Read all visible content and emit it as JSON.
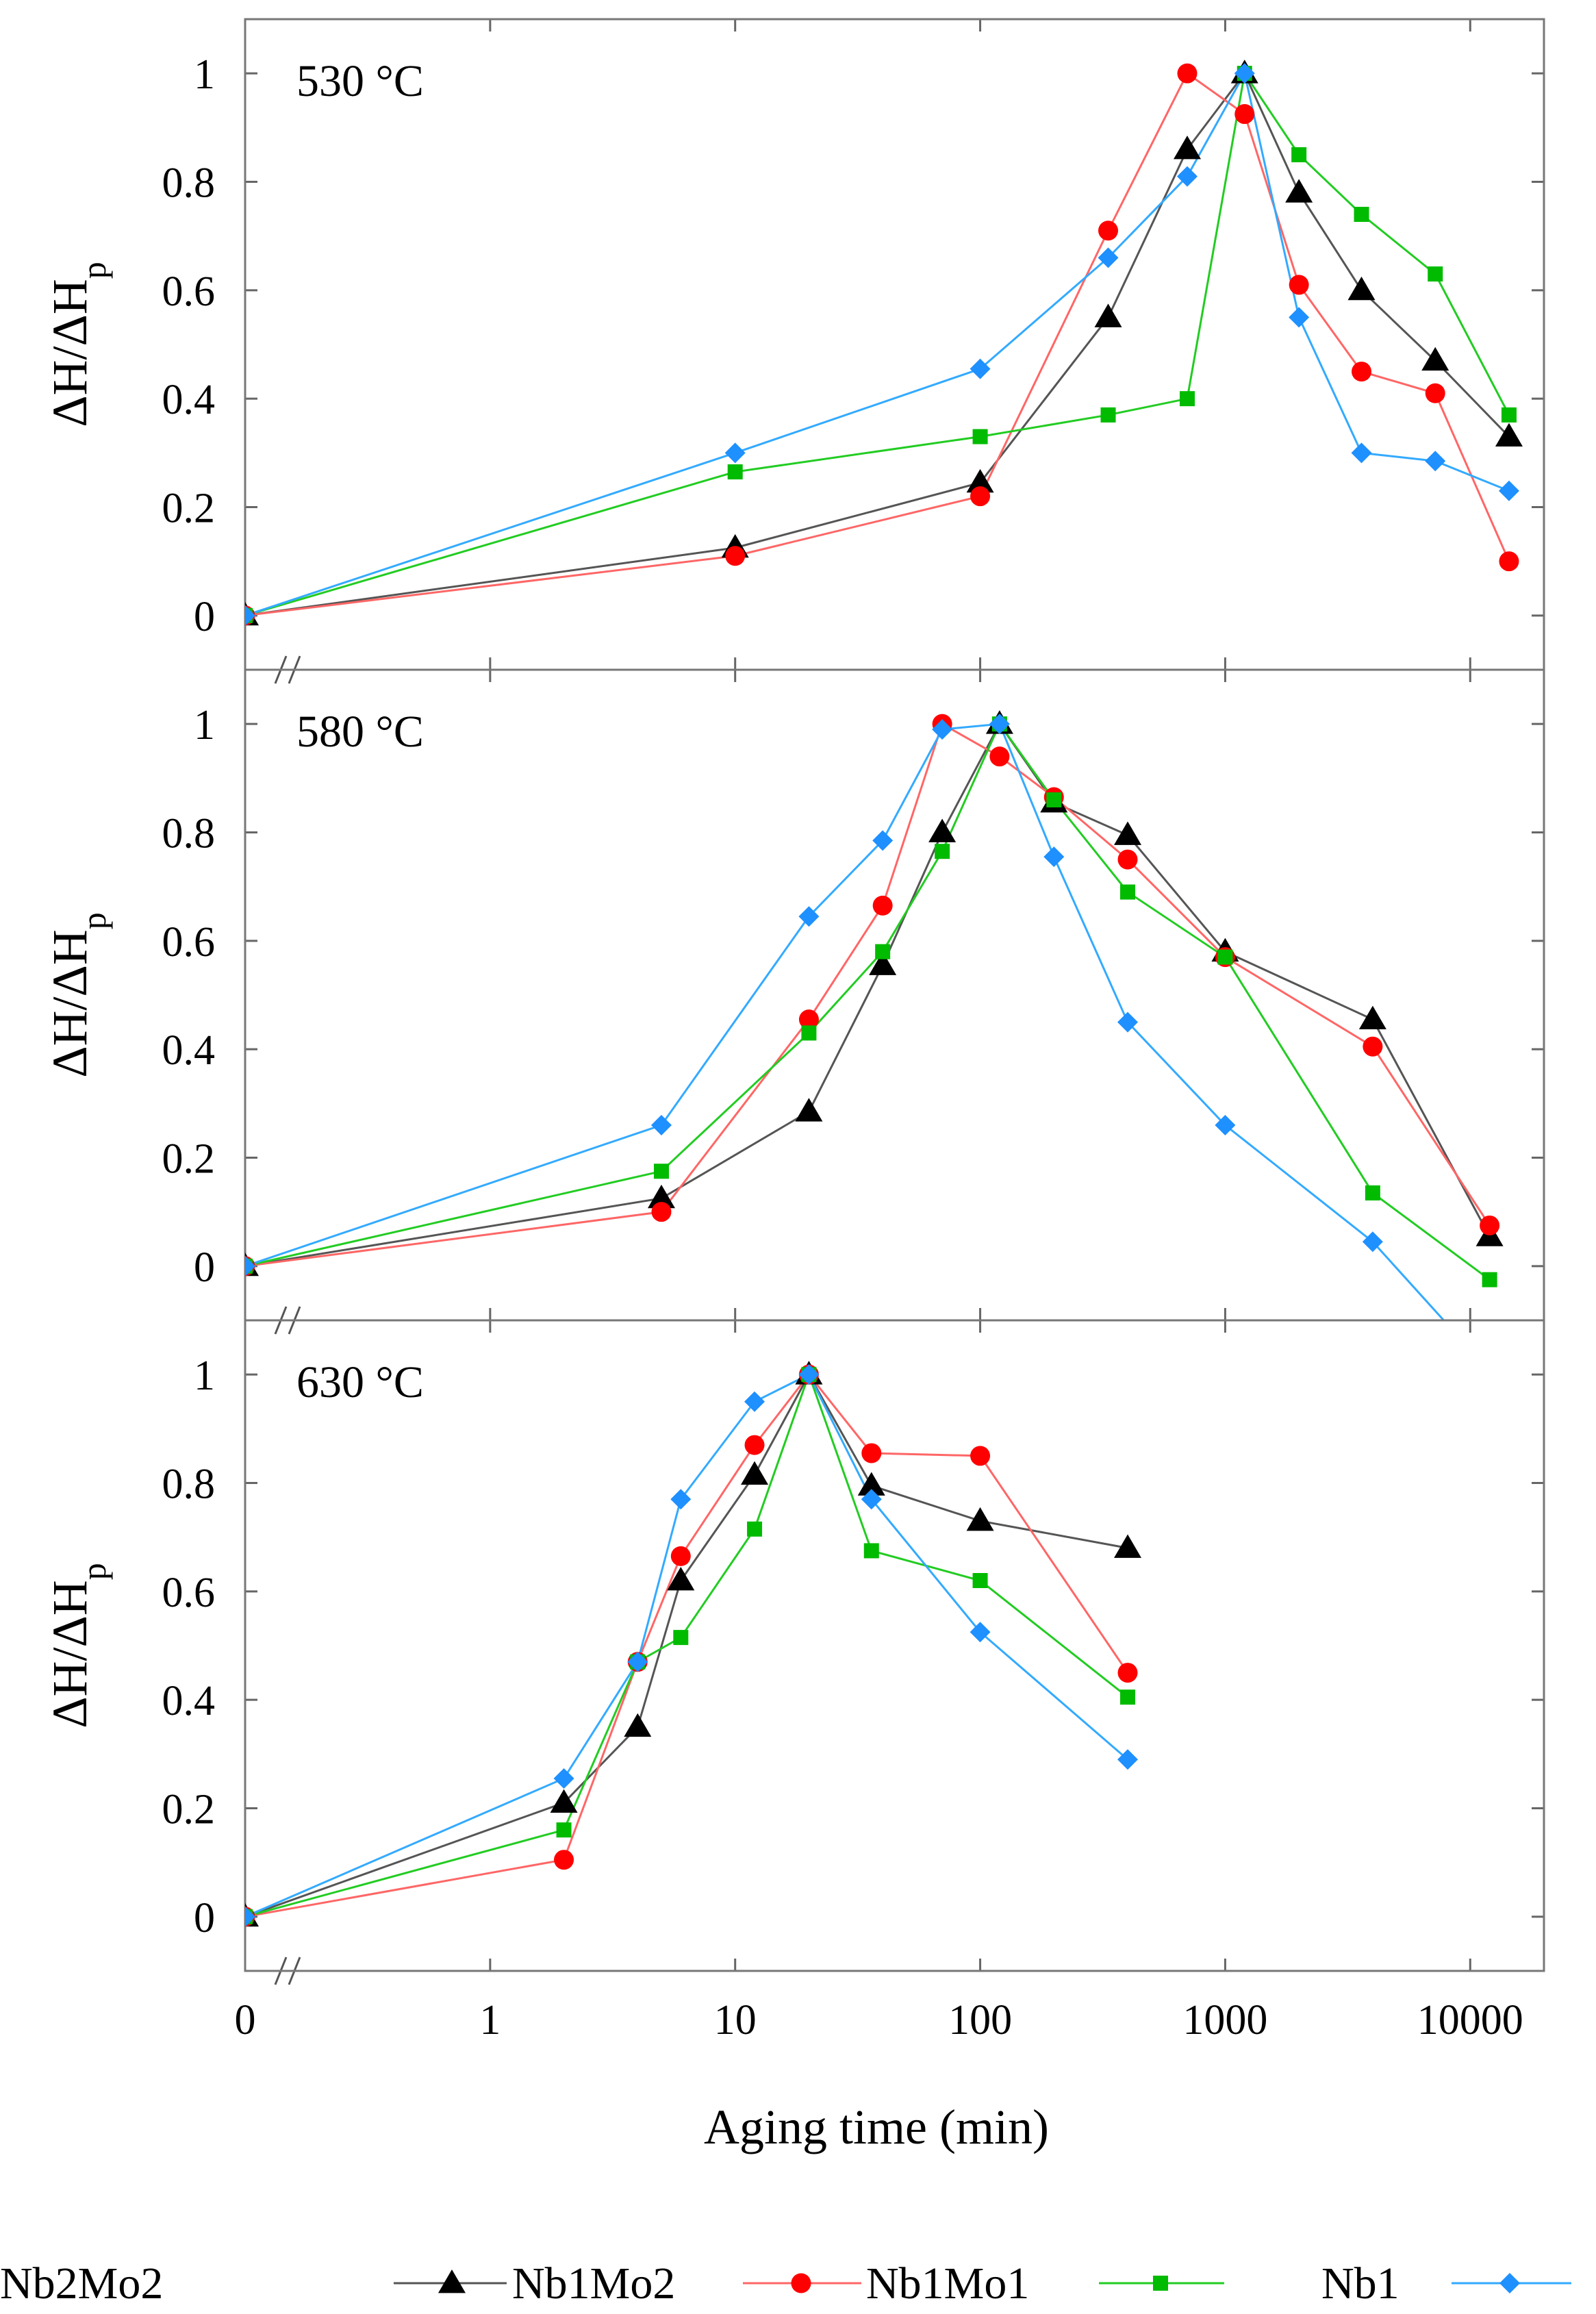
{
  "chart_data": {
    "type": "line",
    "xscale": "log",
    "xlabel": "Aging time (min)",
    "x_ticks": [
      {
        "value": 0.1,
        "label": "0"
      },
      {
        "value": 1,
        "label": "1"
      },
      {
        "value": 10,
        "label": "10"
      },
      {
        "value": 100,
        "label": "100"
      },
      {
        "value": 1000,
        "label": "1000"
      },
      {
        "value": 10000,
        "label": "10000"
      }
    ],
    "xlim": [
      0.1,
      20000
    ],
    "y_ticks": [
      {
        "value": 0,
        "label": "0"
      },
      {
        "value": 0.2,
        "label": "0.2"
      },
      {
        "value": 0.4,
        "label": "0.4"
      },
      {
        "value": 0.6,
        "label": "0.6"
      },
      {
        "value": 0.8,
        "label": "0.8"
      },
      {
        "value": 1,
        "label": "1"
      }
    ],
    "ylim": [
      -0.1,
      1.1
    ],
    "ylabel_main": "ΔH/ΔH",
    "ylabel_sub": "p",
    "series_style": [
      {
        "name": "Nb2Mo2",
        "color": "#000000",
        "line_color": "#555555",
        "marker": "triangle"
      },
      {
        "name": "Nb1Mo2",
        "color": "#ff0000",
        "line_color": "#ff6666",
        "marker": "circle"
      },
      {
        "name": "Nb1Mo1",
        "color": "#00bb00",
        "line_color": "#22cc22",
        "marker": "square"
      },
      {
        "name": "Nb1",
        "color": "#1e90ff",
        "line_color": "#33aaff",
        "marker": "diamond"
      }
    ],
    "panels": [
      {
        "title": "530 °C",
        "series": [
          {
            "name": "Nb2Mo2",
            "x": [
              0.1,
              10,
              100,
              333,
              700,
              1200,
              2000,
              3600,
              7200,
              14400
            ],
            "y": [
              0,
              0.125,
              0.245,
              0.55,
              0.86,
              1.0,
              0.78,
              0.6,
              0.47,
              0.33
            ]
          },
          {
            "name": "Nb1Mo2",
            "x": [
              0.1,
              10,
              100,
              333,
              700,
              1200,
              2000,
              3600,
              7200,
              14400
            ],
            "y": [
              0,
              0.11,
              0.22,
              0.71,
              1.0,
              0.925,
              0.61,
              0.45,
              0.41,
              0.1
            ]
          },
          {
            "name": "Nb1Mo1",
            "x": [
              0.1,
              10,
              100,
              333,
              700,
              1200,
              2000,
              3600,
              7200,
              14400
            ],
            "y": [
              0,
              0.265,
              0.33,
              0.37,
              0.4,
              1.0,
              0.85,
              0.74,
              0.63,
              0.37
            ]
          },
          {
            "name": "Nb1",
            "x": [
              0.1,
              10,
              100,
              333,
              700,
              1200,
              2000,
              3600,
              7200,
              14400
            ],
            "y": [
              0,
              0.3,
              0.455,
              0.66,
              0.81,
              1.0,
              0.55,
              0.3,
              0.285,
              0.23
            ]
          }
        ]
      },
      {
        "title": "580 °C",
        "series": [
          {
            "name": "Nb2Mo2",
            "x": [
              0.1,
              5,
              20,
              40,
              70,
              120,
              200,
              400,
              1000,
              4000,
              12000
            ],
            "y": [
              0,
              0.125,
              0.285,
              0.555,
              0.8,
              1.0,
              0.855,
              0.795,
              0.58,
              0.455,
              0.055
            ]
          },
          {
            "name": "Nb1Mo2",
            "x": [
              0.1,
              5,
              20,
              40,
              70,
              120,
              200,
              400,
              1000,
              4000,
              12000
            ],
            "y": [
              0,
              0.1,
              0.455,
              0.665,
              1.0,
              0.94,
              0.865,
              0.75,
              0.57,
              0.405,
              0.075
            ]
          },
          {
            "name": "Nb1Mo1",
            "x": [
              0.1,
              5,
              20,
              40,
              70,
              120,
              200,
              400,
              1000,
              4000,
              12000
            ],
            "y": [
              0,
              0.175,
              0.43,
              0.58,
              0.765,
              1.0,
              0.86,
              0.69,
              0.57,
              0.135,
              -0.025
            ]
          },
          {
            "name": "Nb1",
            "x": [
              0.1,
              5,
              20,
              40,
              70,
              120,
              200,
              400,
              1000,
              4000,
              7800
            ],
            "y": [
              0,
              0.26,
              0.645,
              0.785,
              0.99,
              1.0,
              0.755,
              0.45,
              0.26,
              0.045,
              -0.1
            ]
          }
        ]
      },
      {
        "title": "630 °C",
        "series": [
          {
            "name": "Nb2Mo2",
            "x": [
              0.1,
              2,
              4,
              6,
              12,
              20,
              36,
              100,
              400
            ],
            "y": [
              0,
              0.21,
              0.35,
              0.62,
              0.815,
              1.0,
              0.795,
              0.73,
              0.68
            ]
          },
          {
            "name": "Nb1Mo2",
            "x": [
              0.1,
              2,
              4,
              6,
              12,
              20,
              36,
              100,
              400
            ],
            "y": [
              0,
              0.105,
              0.47,
              0.665,
              0.87,
              1.0,
              0.855,
              0.85,
              0.45
            ]
          },
          {
            "name": "Nb1Mo1",
            "x": [
              0.1,
              2,
              4,
              6,
              12,
              20,
              36,
              100,
              400
            ],
            "y": [
              0,
              0.16,
              0.47,
              0.515,
              0.715,
              1.0,
              0.675,
              0.62,
              0.405
            ]
          },
          {
            "name": "Nb1",
            "x": [
              0.1,
              2,
              4,
              6,
              12,
              20,
              36,
              100,
              400
            ],
            "y": [
              0,
              0.255,
              0.47,
              0.77,
              0.95,
              1.0,
              0.77,
              0.525,
              0.29
            ]
          }
        ]
      }
    ]
  }
}
